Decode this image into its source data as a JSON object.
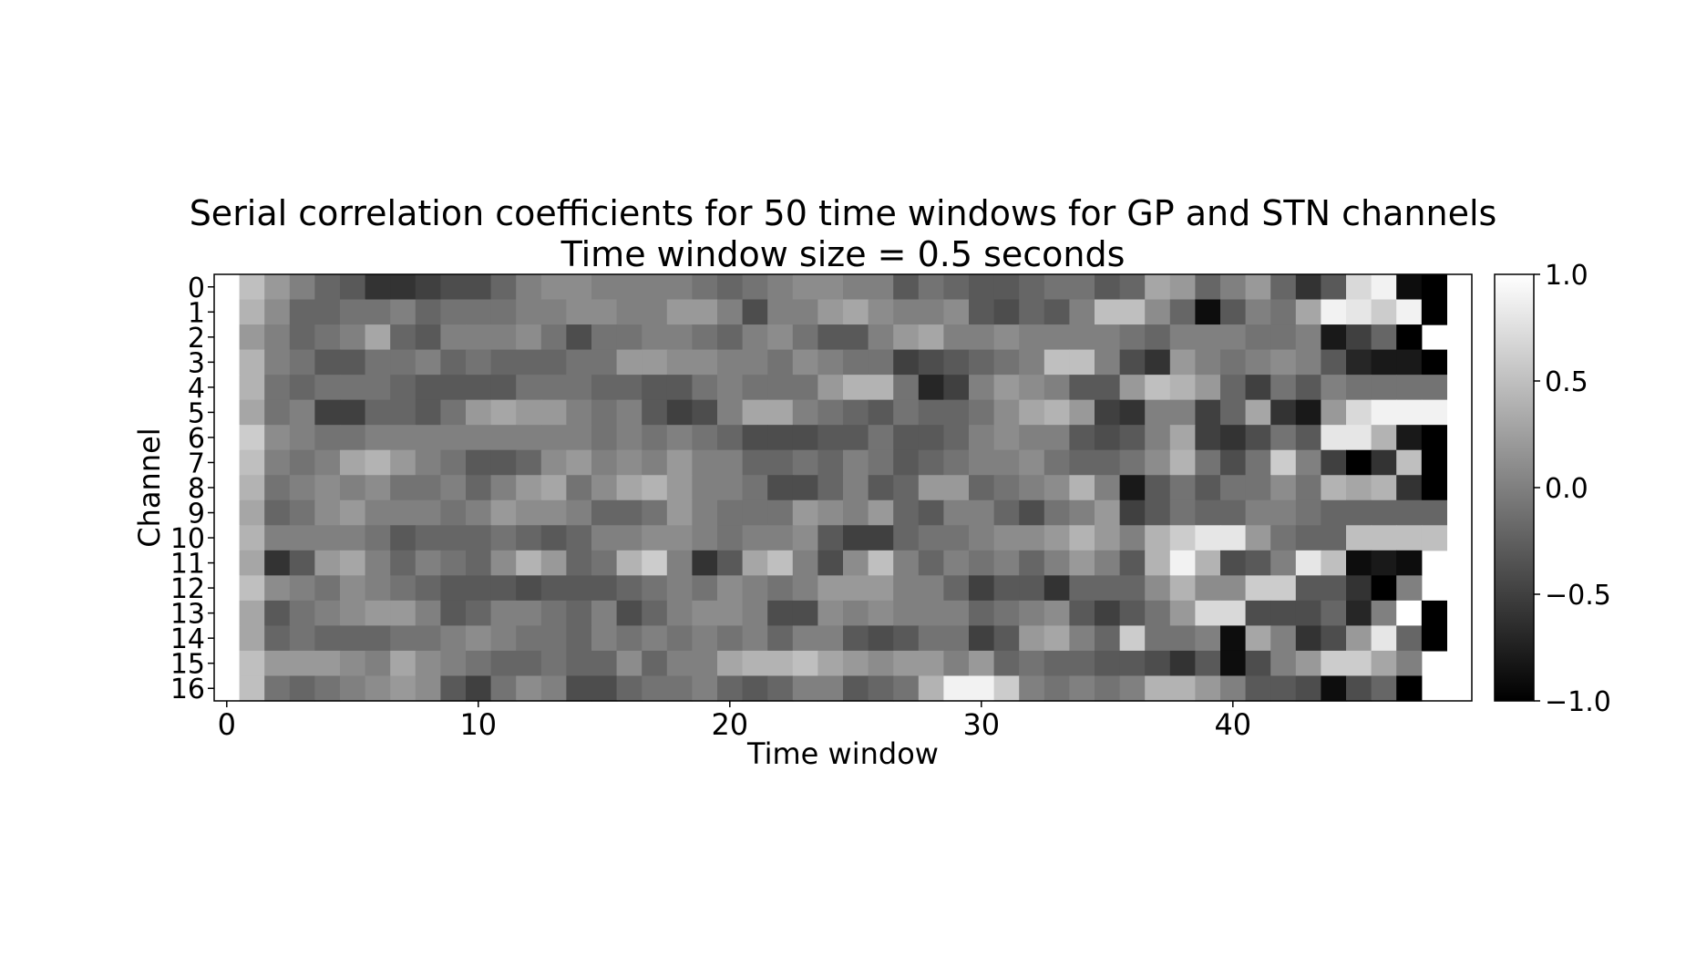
{
  "chart_data": {
    "type": "heatmap",
    "title": "Serial correlation coefficients for 50 time windows for GP and STN channels",
    "subtitle": "Time window size = 0.5 seconds",
    "xlabel": "Time window",
    "ylabel": "Channel",
    "x_ticks": [
      0,
      10,
      20,
      30,
      40
    ],
    "y_ticks": [
      0,
      1,
      2,
      3,
      4,
      5,
      6,
      7,
      8,
      9,
      10,
      11,
      12,
      13,
      14,
      15,
      16
    ],
    "x_range": [
      -0.5,
      49.5
    ],
    "y_range": [
      -0.5,
      16.5
    ],
    "colormap": "gray",
    "colorbar": {
      "vmin": -1.0,
      "vmax": 1.0,
      "ticks": [
        1.0,
        0.5,
        0.0,
        -0.5,
        -1.0
      ],
      "tick_labels": [
        "1.0",
        "0.5",
        "0.0",
        "−0.5",
        "−1.0"
      ]
    },
    "missing_color": "#ffffff",
    "rows": [
      [
        1.0,
        0.5,
        0.2,
        0.0,
        -0.2,
        -0.3,
        -0.6,
        -0.6,
        -0.5,
        -0.4,
        -0.4,
        -0.2,
        0.0,
        0.1,
        0.1,
        0.0,
        0.0,
        0.0,
        0.0,
        -0.1,
        -0.2,
        -0.1,
        0.0,
        0.1,
        0.1,
        0.0,
        0.0,
        -0.3,
        -0.1,
        -0.2,
        -0.3,
        -0.3,
        -0.2,
        -0.1,
        -0.1,
        -0.3,
        -0.2,
        0.3,
        0.2,
        -0.2,
        0.0,
        0.2,
        -0.2,
        -0.6,
        -0.3,
        0.7,
        0.9,
        -0.9,
        -1.0,
        null
      ],
      [
        1.0,
        0.4,
        0.1,
        -0.2,
        -0.2,
        -0.1,
        -0.1,
        0.0,
        -0.2,
        -0.1,
        -0.1,
        -0.1,
        0.0,
        0.0,
        0.1,
        0.1,
        0.0,
        0.0,
        0.2,
        0.2,
        0.0,
        -0.4,
        0.0,
        0.0,
        0.2,
        0.3,
        0.1,
        0.0,
        0.0,
        0.1,
        -0.3,
        -0.4,
        -0.2,
        -0.3,
        0.0,
        0.5,
        0.5,
        0.1,
        -0.2,
        -0.9,
        -0.3,
        0.0,
        -0.1,
        0.3,
        0.9,
        0.8,
        0.6,
        0.9,
        -1.0,
        null
      ],
      [
        1.0,
        0.2,
        0.0,
        -0.2,
        -0.1,
        0.0,
        0.3,
        -0.2,
        -0.3,
        0.0,
        0.0,
        0.0,
        0.1,
        -0.1,
        -0.4,
        -0.1,
        -0.1,
        0.0,
        0.0,
        -0.1,
        -0.2,
        0.0,
        0.1,
        -0.1,
        -0.3,
        -0.3,
        0.0,
        0.2,
        0.3,
        0.0,
        0.0,
        0.1,
        0.0,
        0.0,
        0.0,
        0.0,
        -0.1,
        -0.2,
        0.0,
        0.0,
        0.0,
        -0.1,
        -0.1,
        0.0,
        -0.8,
        -0.5,
        -0.2,
        -1.0,
        null,
        null
      ],
      [
        1.0,
        0.4,
        0.0,
        -0.1,
        -0.3,
        -0.3,
        -0.1,
        -0.1,
        0.0,
        -0.2,
        -0.1,
        -0.2,
        -0.2,
        -0.2,
        -0.1,
        -0.1,
        0.2,
        0.2,
        0.1,
        0.1,
        0.0,
        0.0,
        -0.1,
        0.1,
        0.0,
        -0.1,
        -0.1,
        -0.5,
        -0.4,
        -0.3,
        -0.2,
        -0.1,
        0.0,
        0.5,
        0.5,
        0.0,
        -0.4,
        -0.6,
        0.2,
        0.0,
        -0.1,
        0.0,
        0.1,
        0.0,
        -0.3,
        -0.7,
        -0.8,
        -0.8,
        -1.0,
        null
      ],
      [
        1.0,
        0.4,
        -0.1,
        -0.2,
        -0.1,
        -0.1,
        -0.1,
        -0.2,
        -0.3,
        -0.3,
        -0.3,
        -0.3,
        -0.1,
        -0.1,
        -0.1,
        -0.2,
        -0.2,
        -0.3,
        -0.3,
        -0.1,
        0.0,
        -0.1,
        -0.1,
        -0.1,
        0.2,
        0.4,
        0.4,
        -0.1,
        -0.7,
        -0.5,
        0.0,
        0.2,
        0.1,
        0.0,
        -0.3,
        -0.3,
        0.2,
        0.5,
        0.4,
        0.2,
        -0.2,
        -0.5,
        -0.1,
        -0.3,
        0.0,
        -0.1,
        -0.1,
        -0.1,
        -0.1,
        null
      ],
      [
        1.0,
        0.3,
        -0.1,
        0.0,
        -0.5,
        -0.5,
        -0.2,
        -0.2,
        -0.3,
        -0.1,
        0.2,
        0.3,
        0.2,
        0.2,
        0.0,
        -0.1,
        0.0,
        -0.3,
        -0.5,
        -0.4,
        0.0,
        0.3,
        0.3,
        0.0,
        -0.1,
        -0.2,
        -0.3,
        -0.1,
        -0.2,
        -0.2,
        -0.1,
        0.1,
        0.3,
        0.4,
        0.2,
        -0.5,
        -0.6,
        0.0,
        0.0,
        -0.5,
        -0.2,
        0.3,
        -0.6,
        -0.8,
        0.2,
        0.7,
        0.9,
        0.9,
        0.9,
        null
      ],
      [
        1.0,
        0.6,
        0.1,
        0.0,
        -0.1,
        -0.1,
        0.0,
        0.0,
        0.0,
        0.0,
        0.0,
        0.0,
        0.0,
        0.0,
        0.0,
        -0.1,
        0.0,
        -0.1,
        0.0,
        -0.1,
        -0.2,
        -0.4,
        -0.4,
        -0.4,
        -0.3,
        -0.3,
        -0.1,
        -0.3,
        -0.3,
        -0.2,
        0.0,
        0.1,
        0.0,
        0.0,
        -0.3,
        -0.4,
        -0.3,
        0.0,
        0.3,
        -0.5,
        -0.6,
        -0.4,
        -0.1,
        -0.3,
        0.8,
        0.8,
        0.4,
        -0.8,
        -1.0,
        null
      ],
      [
        1.0,
        0.5,
        0.0,
        -0.1,
        0.0,
        0.3,
        0.4,
        0.2,
        0.0,
        -0.1,
        -0.3,
        -0.3,
        -0.2,
        0.1,
        0.2,
        0.0,
        0.1,
        0.0,
        0.2,
        0.0,
        0.0,
        -0.2,
        -0.2,
        -0.1,
        -0.2,
        0.0,
        -0.1,
        -0.3,
        -0.2,
        -0.1,
        0.0,
        0.0,
        0.1,
        -0.1,
        -0.2,
        -0.2,
        -0.1,
        0.1,
        0.4,
        -0.1,
        -0.4,
        -0.1,
        0.6,
        0.0,
        -0.5,
        -1.0,
        -0.6,
        0.5,
        -1.0,
        null
      ],
      [
        1.0,
        0.4,
        -0.1,
        0.0,
        0.1,
        0.0,
        0.1,
        -0.1,
        -0.1,
        0.0,
        -0.2,
        0.0,
        0.2,
        0.3,
        -0.1,
        0.1,
        0.3,
        0.4,
        0.2,
        0.0,
        0.0,
        -0.1,
        -0.4,
        -0.4,
        -0.2,
        0.0,
        -0.3,
        -0.2,
        0.2,
        0.2,
        -0.2,
        -0.1,
        0.0,
        0.1,
        0.4,
        0.0,
        -0.8,
        -0.3,
        -0.1,
        -0.3,
        -0.1,
        -0.1,
        0.1,
        -0.1,
        0.4,
        0.3,
        0.4,
        -0.6,
        -1.0,
        null
      ],
      [
        1.0,
        0.3,
        -0.2,
        -0.1,
        0.1,
        0.2,
        0.0,
        0.0,
        0.0,
        -0.1,
        0.0,
        0.2,
        0.1,
        0.1,
        0.0,
        -0.2,
        -0.2,
        -0.1,
        0.2,
        0.0,
        -0.1,
        -0.1,
        -0.1,
        0.2,
        0.1,
        0.0,
        0.2,
        -0.2,
        -0.3,
        0.0,
        0.0,
        -0.2,
        -0.4,
        -0.1,
        0.0,
        0.2,
        -0.5,
        -0.3,
        -0.1,
        -0.2,
        -0.2,
        0.0,
        0.0,
        -0.1,
        -0.2,
        -0.2,
        -0.2,
        -0.2,
        -0.2,
        null
      ],
      [
        1.0,
        0.4,
        0.0,
        0.0,
        0.0,
        0.0,
        -0.1,
        -0.3,
        -0.2,
        -0.2,
        -0.2,
        -0.1,
        -0.2,
        -0.3,
        -0.2,
        0.0,
        0.0,
        0.1,
        0.1,
        0.0,
        -0.1,
        0.0,
        0.0,
        0.1,
        -0.3,
        -0.5,
        -0.5,
        -0.2,
        -0.1,
        -0.1,
        0.0,
        0.1,
        0.1,
        0.2,
        0.4,
        0.2,
        0.0,
        0.4,
        0.6,
        0.8,
        0.8,
        0.2,
        -0.1,
        -0.2,
        -0.2,
        0.5,
        0.5,
        0.5,
        0.5,
        null
      ],
      [
        1.0,
        0.3,
        -0.6,
        -0.3,
        0.2,
        0.3,
        0.0,
        -0.2,
        0.0,
        -0.1,
        -0.2,
        0.1,
        0.4,
        0.2,
        -0.2,
        -0.1,
        0.4,
        0.6,
        0.0,
        -0.6,
        -0.3,
        0.3,
        0.5,
        0.0,
        -0.4,
        0.1,
        0.5,
        0.0,
        -0.2,
        0.0,
        -0.1,
        0.0,
        -0.2,
        0.0,
        0.2,
        0.0,
        -0.3,
        0.4,
        0.9,
        0.4,
        -0.4,
        -0.3,
        0.0,
        0.8,
        0.5,
        -0.9,
        -0.8,
        -0.9,
        null,
        null
      ],
      [
        1.0,
        0.5,
        0.1,
        0.0,
        -0.1,
        0.1,
        0.0,
        -0.1,
        -0.2,
        -0.3,
        -0.3,
        -0.3,
        -0.4,
        -0.3,
        -0.3,
        -0.3,
        -0.2,
        -0.1,
        0.0,
        -0.1,
        0.1,
        0.0,
        -0.1,
        0.0,
        0.2,
        0.2,
        0.2,
        0.0,
        0.0,
        -0.2,
        -0.5,
        -0.3,
        -0.3,
        -0.6,
        -0.2,
        -0.2,
        -0.2,
        0.1,
        0.4,
        0.1,
        0.1,
        0.6,
        0.6,
        -0.3,
        -0.3,
        -0.6,
        -1.0,
        0.0,
        null,
        null
      ],
      [
        1.0,
        0.3,
        -0.3,
        -0.1,
        0.0,
        0.1,
        0.2,
        0.2,
        0.0,
        -0.3,
        -0.2,
        0.0,
        0.0,
        -0.1,
        -0.2,
        0.0,
        -0.4,
        -0.2,
        0.0,
        0.1,
        0.1,
        0.0,
        -0.4,
        -0.4,
        0.1,
        0.0,
        0.1,
        0.0,
        0.0,
        0.0,
        -0.2,
        -0.1,
        0.0,
        0.1,
        -0.3,
        -0.5,
        -0.3,
        -0.1,
        0.2,
        0.7,
        0.7,
        -0.4,
        -0.4,
        -0.4,
        -0.2,
        -0.7,
        0.0,
        1.0,
        -1.0,
        null
      ],
      [
        1.0,
        0.3,
        -0.2,
        -0.1,
        -0.2,
        -0.2,
        -0.2,
        -0.1,
        -0.1,
        0.0,
        0.1,
        0.0,
        -0.1,
        -0.1,
        -0.2,
        0.0,
        -0.1,
        0.0,
        -0.1,
        0.0,
        -0.1,
        0.0,
        -0.2,
        0.0,
        0.0,
        -0.3,
        -0.4,
        -0.3,
        -0.1,
        -0.1,
        -0.5,
        -0.3,
        0.2,
        0.3,
        0.0,
        -0.2,
        0.6,
        -0.1,
        -0.1,
        0.0,
        -0.9,
        0.3,
        0.0,
        -0.6,
        -0.4,
        0.2,
        0.8,
        -0.2,
        -1.0,
        null
      ],
      [
        1.0,
        0.5,
        0.2,
        0.2,
        0.2,
        0.1,
        0.0,
        0.3,
        0.1,
        0.0,
        -0.1,
        -0.2,
        -0.2,
        -0.1,
        -0.2,
        -0.2,
        0.1,
        -0.2,
        0.0,
        0.0,
        0.3,
        0.4,
        0.4,
        0.5,
        0.3,
        0.2,
        0.1,
        0.2,
        0.2,
        0.0,
        0.2,
        -0.2,
        -0.1,
        -0.2,
        -0.2,
        -0.3,
        -0.3,
        -0.4,
        -0.6,
        -0.3,
        -0.9,
        -0.4,
        0.0,
        0.2,
        0.6,
        0.6,
        0.3,
        0.0,
        null,
        null
      ],
      [
        1.0,
        0.5,
        -0.1,
        -0.2,
        -0.1,
        0.0,
        0.1,
        0.2,
        0.1,
        -0.3,
        -0.5,
        -0.1,
        0.1,
        0.0,
        -0.4,
        -0.4,
        -0.2,
        -0.1,
        -0.1,
        0.0,
        -0.2,
        -0.3,
        -0.2,
        0.0,
        0.0,
        -0.3,
        -0.2,
        -0.1,
        0.4,
        0.9,
        0.9,
        0.6,
        0.0,
        -0.1,
        0.0,
        -0.1,
        0.0,
        0.4,
        0.4,
        0.2,
        0.0,
        -0.3,
        -0.3,
        -0.4,
        -0.9,
        -0.4,
        -0.2,
        -1.0,
        null,
        null
      ]
    ]
  }
}
